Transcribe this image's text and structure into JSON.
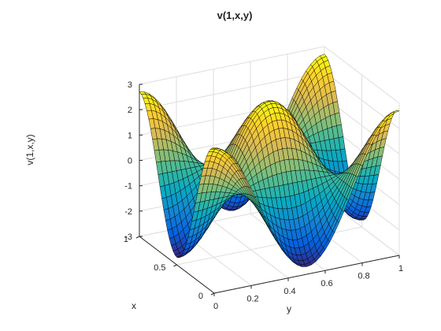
{
  "chart_data": {
    "type": "surface",
    "title": "v(1,x,y)",
    "xlabel": "x",
    "ylabel": "y",
    "zlabel": "v(1,x,y)",
    "xlim": [
      0,
      1
    ],
    "ylim": [
      0,
      1
    ],
    "zlim": [
      -3,
      3
    ],
    "x_ticks": [
      "0",
      "0.5",
      "1"
    ],
    "y_ticks": [
      "0",
      "0.2",
      "0.4",
      "0.6",
      "0.8",
      "1"
    ],
    "z_ticks": [
      "-3",
      "-2",
      "-1",
      "0",
      "1",
      "2",
      "3"
    ],
    "function": "v(1,x,y) = 2.7*cos(2*pi*x)*cos(2*pi*y)",
    "grid_resolution": 41,
    "colormap": "parula",
    "colormap_colors": [
      "#352a87",
      "#0363e1",
      "#1485d4",
      "#06a7c6",
      "#38b99e",
      "#92bf73",
      "#d9ba56",
      "#fcce2e",
      "#f9fb0e"
    ],
    "grid": true,
    "mesh_color": "#000000"
  }
}
